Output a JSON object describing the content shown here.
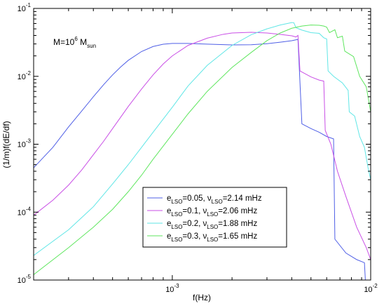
{
  "chart_data": {
    "type": "line",
    "xscale": "log",
    "yscale": "log",
    "xlim": [
      0.0002,
      0.01
    ],
    "ylim": [
      1e-05,
      0.1
    ],
    "xlabel": "f(Hz)",
    "ylabel": "(1/m)f(dE/df)",
    "x_ticks": [
      {
        "value": 0.001,
        "base": "10",
        "exp": "-3"
      },
      {
        "value": 0.01,
        "base": "10",
        "exp": "-2"
      }
    ],
    "y_ticks": [
      {
        "value": 0.1,
        "base": "10",
        "exp": "-1"
      },
      {
        "value": 0.01,
        "base": "10",
        "exp": "-2"
      },
      {
        "value": 0.001,
        "base": "10",
        "exp": "-3"
      },
      {
        "value": 0.0001,
        "base": "10",
        "exp": "-4"
      },
      {
        "value": 1e-05,
        "base": "10",
        "exp": "-5"
      }
    ],
    "annotation": {
      "pre": "M=10",
      "sup": "6",
      "mid": " M",
      "sub": "sun"
    },
    "legend_position": "bottom-center",
    "series": [
      {
        "name": "e_LSO=0.05, ν_LSO=2.14 mHz",
        "label": {
          "e": "e",
          "esub": "LSO",
          "eval": "=0.05, ",
          "nu": "ν",
          "nusub": "LSO",
          "nuval": "=2.14 mHz"
        },
        "color": "#4f5fe6",
        "points": [
          [
            0.0002,
            0.00045
          ],
          [
            0.00025,
            0.0009
          ],
          [
            0.0003,
            0.0018
          ],
          [
            0.00035,
            0.0031
          ],
          [
            0.0004,
            0.005
          ],
          [
            0.00045,
            0.0075
          ],
          [
            0.0005,
            0.0105
          ],
          [
            0.00055,
            0.0138
          ],
          [
            0.0006,
            0.0172
          ],
          [
            0.0007,
            0.0232
          ],
          [
            0.0008,
            0.0275
          ],
          [
            0.0009,
            0.0297
          ],
          [
            0.001,
            0.0305
          ],
          [
            0.0012,
            0.0305
          ],
          [
            0.0015,
            0.0298
          ],
          [
            0.002,
            0.029
          ],
          [
            0.0025,
            0.0292
          ],
          [
            0.003,
            0.0302
          ],
          [
            0.0035,
            0.0318
          ],
          [
            0.004,
            0.0335
          ],
          [
            0.0043,
            0.035
          ],
          [
            0.0045,
            0.002
          ],
          [
            0.005,
            0.0017
          ],
          [
            0.0055,
            0.0015
          ],
          [
            0.006,
            0.0013
          ],
          [
            0.0065,
            0.0012
          ],
          [
            0.0066,
            4e-05
          ],
          [
            0.0075,
            2.5e-05
          ],
          [
            0.0085,
            2e-05
          ],
          [
            0.0093,
            1.8e-05
          ],
          [
            0.0094,
            1e-05
          ]
        ]
      },
      {
        "name": "e_LSO=0.1, ν_LSO=2.06 mHz",
        "label": {
          "e": "e",
          "esub": "LSO",
          "eval": "=0.1, ",
          "nu": "ν",
          "nusub": "LSO",
          "nuval": "=2.06 mHz"
        },
        "color": "#c94fe6",
        "points": [
          [
            0.0002,
            9e-05
          ],
          [
            0.00025,
            0.00015
          ],
          [
            0.0003,
            0.00025
          ],
          [
            0.00035,
            0.00042
          ],
          [
            0.0004,
            0.0007
          ],
          [
            0.00045,
            0.0011
          ],
          [
            0.0005,
            0.0017
          ],
          [
            0.0006,
            0.0036
          ],
          [
            0.0007,
            0.0065
          ],
          [
            0.0008,
            0.0105
          ],
          [
            0.0009,
            0.0152
          ],
          [
            0.001,
            0.02
          ],
          [
            0.0012,
            0.0285
          ],
          [
            0.0015,
            0.0365
          ],
          [
            0.0018,
            0.0415
          ],
          [
            0.002,
            0.0435
          ],
          [
            0.0025,
            0.0445
          ],
          [
            0.003,
            0.0435
          ],
          [
            0.0035,
            0.0415
          ],
          [
            0.004,
            0.0395
          ],
          [
            0.0042,
            0.038
          ],
          [
            0.0043,
            0.04
          ],
          [
            0.0044,
            0.012
          ],
          [
            0.005,
            0.0098
          ],
          [
            0.0055,
            0.0088
          ],
          [
            0.0058,
            0.0085
          ],
          [
            0.0059,
            0.0016
          ],
          [
            0.0063,
            0.001
          ],
          [
            0.0068,
            0.0004
          ],
          [
            0.0075,
            0.00017
          ],
          [
            0.0085,
            6e-05
          ],
          [
            0.0095,
            3e-05
          ],
          [
            0.01,
            2e-05
          ]
        ]
      },
      {
        "name": "e_LSO=0.2, ν_LSO=1.88 mHz",
        "label": {
          "e": "e",
          "esub": "LSO",
          "eval": "=0.2, ",
          "nu": "ν",
          "nusub": "LSO",
          "nuval": "=1.88 mHz"
        },
        "color": "#5fe6e6",
        "points": [
          [
            0.0002,
            2.3e-05
          ],
          [
            0.0003,
            5.5e-05
          ],
          [
            0.0004,
            0.00012
          ],
          [
            0.0005,
            0.00026
          ],
          [
            0.0006,
            0.0005
          ],
          [
            0.0007,
            0.0009
          ],
          [
            0.0008,
            0.0015
          ],
          [
            0.001,
            0.0035
          ],
          [
            0.0012,
            0.0072
          ],
          [
            0.0015,
            0.0145
          ],
          [
            0.002,
            0.0285
          ],
          [
            0.0025,
            0.041
          ],
          [
            0.003,
            0.05
          ],
          [
            0.0035,
            0.057
          ],
          [
            0.0038,
            0.06
          ],
          [
            0.004,
            0.062
          ],
          [
            0.0041,
            0.0615
          ],
          [
            0.0042,
            0.052
          ],
          [
            0.0045,
            0.048
          ],
          [
            0.005,
            0.044
          ],
          [
            0.0055,
            0.043
          ],
          [
            0.0058,
            0.037
          ],
          [
            0.006,
            0.0355
          ],
          [
            0.0061,
            0.012
          ],
          [
            0.0065,
            0.01
          ],
          [
            0.0072,
            0.008
          ],
          [
            0.0077,
            0.0062
          ],
          [
            0.0078,
            0.003
          ],
          [
            0.0083,
            0.0026
          ],
          [
            0.0088,
            0.0013
          ],
          [
            0.0093,
            0.0009
          ],
          [
            0.0097,
            0.00045
          ],
          [
            0.01,
            0.0003
          ]
        ]
      },
      {
        "name": "e_LSO=0.3, ν_LSO=1.65 mHz",
        "label": {
          "e": "e",
          "esub": "LSO",
          "eval": "=0.3, ",
          "nu": "ν",
          "nusub": "LSO",
          "nuval": "=1.65 mHz"
        },
        "color": "#5fe65f",
        "points": [
          [
            0.0002,
            1.2e-05
          ],
          [
            0.0003,
            3e-05
          ],
          [
            0.0004,
            6e-05
          ],
          [
            0.0005,
            0.00011
          ],
          [
            0.0006,
            0.0002
          ],
          [
            0.0007,
            0.00035
          ],
          [
            0.0008,
            0.0006
          ],
          [
            0.001,
            0.0014
          ],
          [
            0.0012,
            0.0028
          ],
          [
            0.0015,
            0.006
          ],
          [
            0.002,
            0.0135
          ],
          [
            0.0025,
            0.0225
          ],
          [
            0.003,
            0.0335
          ],
          [
            0.0035,
            0.0435
          ],
          [
            0.004,
            0.051
          ],
          [
            0.0045,
            0.055
          ],
          [
            0.005,
            0.057
          ],
          [
            0.0055,
            0.0565
          ],
          [
            0.0058,
            0.055
          ],
          [
            0.006,
            0.053
          ],
          [
            0.0062,
            0.044
          ],
          [
            0.0066,
            0.0485
          ],
          [
            0.0068,
            0.037
          ],
          [
            0.0072,
            0.039
          ],
          [
            0.0074,
            0.0235
          ],
          [
            0.0082,
            0.0195
          ],
          [
            0.0088,
            0.01
          ],
          [
            0.0095,
            0.007
          ],
          [
            0.01,
            0.003
          ]
        ]
      }
    ]
  }
}
